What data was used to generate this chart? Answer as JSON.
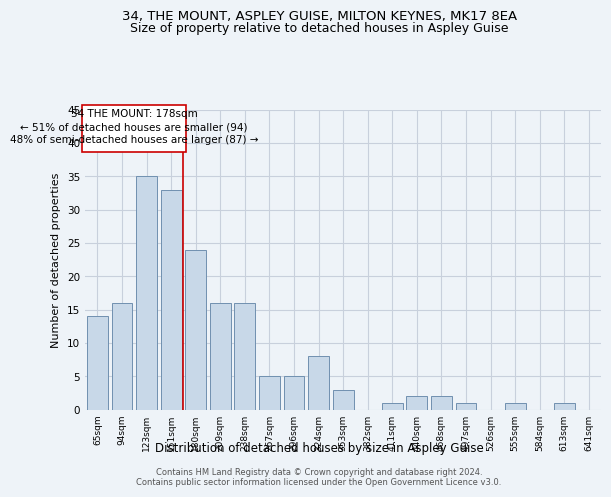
{
  "title1": "34, THE MOUNT, ASPLEY GUISE, MILTON KEYNES, MK17 8EA",
  "title2": "Size of property relative to detached houses in Aspley Guise",
  "xlabel": "Distribution of detached houses by size in Aspley Guise",
  "ylabel": "Number of detached properties",
  "footer1": "Contains HM Land Registry data © Crown copyright and database right 2024.",
  "footer2": "Contains public sector information licensed under the Open Government Licence v3.0.",
  "bin_labels": [
    "65sqm",
    "94sqm",
    "123sqm",
    "151sqm",
    "180sqm",
    "209sqm",
    "238sqm",
    "267sqm",
    "296sqm",
    "324sqm",
    "353sqm",
    "382sqm",
    "411sqm",
    "440sqm",
    "468sqm",
    "497sqm",
    "526sqm",
    "555sqm",
    "584sqm",
    "613sqm",
    "641sqm"
  ],
  "bar_heights": [
    14,
    16,
    35,
    33,
    24,
    16,
    16,
    5,
    5,
    8,
    3,
    0,
    1,
    2,
    2,
    1,
    0,
    1,
    0,
    1,
    0
  ],
  "bar_color": "#c8d8e8",
  "bar_edge_color": "#7090b0",
  "vline_color": "#cc0000",
  "annotation_text": "34 THE MOUNT: 178sqm\n← 51% of detached houses are smaller (94)\n48% of semi-detached houses are larger (87) →",
  "annotation_box_color": "#ffffff",
  "annotation_box_edge_color": "#cc0000",
  "ylim": [
    0,
    45
  ],
  "yticks": [
    0,
    5,
    10,
    15,
    20,
    25,
    30,
    35,
    40,
    45
  ],
  "background_color": "#eef3f8",
  "plot_bg_color": "#eef3f8",
  "grid_color": "#c8d0dc",
  "title_fontsize": 9.5,
  "subtitle_fontsize": 9,
  "vline_at_index": 3.5
}
